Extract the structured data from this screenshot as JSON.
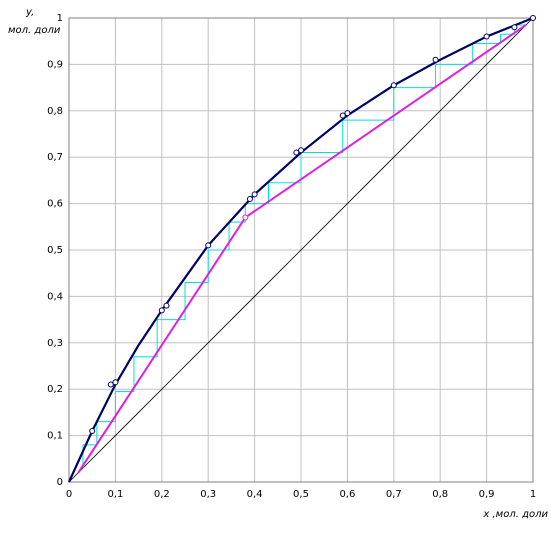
{
  "chart_data": {
    "type": "line",
    "ylabel": [
      "y,",
      "мол. доли"
    ],
    "xlabel": "x ,мол. доли",
    "xlim": [
      0,
      1
    ],
    "ylim": [
      0,
      1
    ],
    "xticks": [
      0,
      {
        "value": 0.1,
        "label": "0,1"
      },
      {
        "value": 0.2,
        "label": "0,2"
      },
      {
        "value": 0.3,
        "label": "0,3"
      },
      {
        "value": 0.4,
        "label": "0,4"
      },
      {
        "value": 0.5,
        "label": "0,5"
      },
      {
        "value": 0.6,
        "label": "0,6"
      },
      {
        "value": 0.7,
        "label": "0,7"
      },
      {
        "value": 0.8,
        "label": "0,8"
      },
      {
        "value": 0.9,
        "label": "0,9"
      },
      1
    ],
    "yticks": [
      0,
      {
        "value": 0.1,
        "label": "0,1"
      },
      {
        "value": 0.2,
        "label": "0,2"
      },
      {
        "value": 0.3,
        "label": "0,3"
      },
      {
        "value": 0.4,
        "label": "0,4"
      },
      {
        "value": 0.5,
        "label": "0,5"
      },
      {
        "value": 0.6,
        "label": "0,6"
      },
      {
        "value": 0.7,
        "label": "0,7"
      },
      {
        "value": 0.8,
        "label": "0,8"
      },
      {
        "value": 0.9,
        "label": "0,9"
      },
      1
    ],
    "grid": true,
    "series": [
      {
        "color": "#000000",
        "width": 0.8,
        "line": true,
        "x": [
          0,
          1
        ],
        "values": [
          0,
          1
        ]
      },
      {
        "color": "#00e0e0",
        "width": 1,
        "line": true,
        "x": [
          0.985,
          0.96,
          0.96,
          0.93,
          0.93,
          0.87,
          0.87,
          0.79,
          0.79,
          0.7,
          0.7,
          0.59,
          0.59,
          0.5,
          0.5,
          0.43,
          0.43,
          0.38,
          0.38,
          0.345,
          0.345,
          0.3,
          0.3,
          0.25,
          0.25,
          0.19,
          0.19,
          0.14,
          0.14,
          0.1,
          0.1,
          0.06,
          0.06,
          0.03,
          0.03
        ],
        "values": [
          0.985,
          0.985,
          0.965,
          0.965,
          0.945,
          0.945,
          0.9,
          0.9,
          0.85,
          0.85,
          0.78,
          0.78,
          0.71,
          0.71,
          0.645,
          0.645,
          0.6,
          0.6,
          0.56,
          0.56,
          0.5,
          0.5,
          0.43,
          0.43,
          0.35,
          0.35,
          0.27,
          0.27,
          0.195,
          0.195,
          0.13,
          0.13,
          0.08,
          0.08,
          0.03
        ]
      },
      {
        "color": "#e020e0",
        "width": 2,
        "line": true,
        "x": [
          0.02,
          0.38,
          0.985
        ],
        "values": [
          0.02,
          0.57,
          0.985
        ]
      },
      {
        "color": "#e020e0",
        "width": 1,
        "line": false,
        "marker": "circle",
        "x": [
          0.38
        ],
        "values": [
          0.57
        ]
      },
      {
        "color": "#000066",
        "width": 2.2,
        "line": true,
        "x": [
          0,
          0.05,
          0.1,
          0.15,
          0.2,
          0.3,
          0.4,
          0.5,
          0.6,
          0.7,
          0.8,
          0.9,
          1
        ],
        "values": [
          0,
          0.11,
          0.21,
          0.295,
          0.37,
          0.51,
          0.62,
          0.71,
          0.79,
          0.855,
          0.91,
          0.96,
          1
        ]
      },
      {
        "color": "#000066",
        "width": 1,
        "line": false,
        "marker": "circle",
        "x": [
          0.05,
          0.09,
          0.1,
          0.2,
          0.21,
          0.3,
          0.39,
          0.4,
          0.49,
          0.5,
          0.59,
          0.6,
          0.7,
          0.79,
          0.9,
          0.96,
          1
        ],
        "values": [
          0.11,
          0.21,
          0.215,
          0.37,
          0.38,
          0.51,
          0.61,
          0.62,
          0.71,
          0.715,
          0.79,
          0.795,
          0.855,
          0.91,
          0.96,
          0.98,
          1
        ]
      }
    ]
  }
}
